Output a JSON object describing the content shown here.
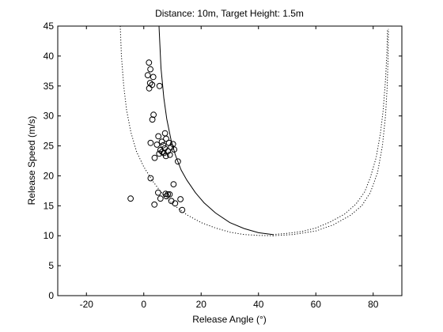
{
  "chart_data": {
    "type": "scatter",
    "title": "Distance: 10m, Target Height: 1.5m",
    "xlabel": "Release Angle (°)",
    "ylabel": "Release Speed (m/s)",
    "xlim": [
      -30,
      90
    ],
    "ylim": [
      0,
      45
    ],
    "xticks": [
      -20,
      0,
      20,
      40,
      60,
      80
    ],
    "yticks": [
      0,
      5,
      10,
      15,
      20,
      25,
      30,
      35,
      40,
      45
    ],
    "grid": false,
    "legend": "none",
    "series": [
      {
        "marker": "circle-open",
        "points": [
          [
            1.8,
            38.9
          ],
          [
            2.3,
            37.8
          ],
          [
            3.3,
            36.5
          ],
          [
            1.4,
            36.8
          ],
          [
            2.2,
            35.5
          ],
          [
            2.9,
            35.2
          ],
          [
            1.9,
            34.6
          ],
          [
            5.5,
            35.0
          ],
          [
            3.4,
            30.2
          ],
          [
            3.0,
            29.4
          ],
          [
            7.4,
            27.1
          ],
          [
            5.1,
            26.6
          ],
          [
            7.8,
            26.2
          ],
          [
            6.3,
            25.7
          ],
          [
            8.8,
            25.5
          ],
          [
            10.2,
            25.3
          ],
          [
            2.4,
            25.5
          ],
          [
            6.8,
            25.1
          ],
          [
            4.6,
            25.2
          ],
          [
            9.5,
            24.8
          ],
          [
            7.3,
            24.6
          ],
          [
            5.8,
            24.3
          ],
          [
            8.4,
            24.1
          ],
          [
            6.4,
            24.0
          ],
          [
            10.6,
            24.4
          ],
          [
            5.4,
            23.7
          ],
          [
            7.0,
            23.8
          ],
          [
            9.1,
            23.5
          ],
          [
            7.7,
            23.3
          ],
          [
            3.8,
            23.0
          ],
          [
            11.9,
            22.4
          ],
          [
            2.4,
            19.6
          ],
          [
            10.4,
            18.6
          ],
          [
            5.0,
            17.2
          ],
          [
            7.6,
            17.0
          ],
          [
            8.4,
            16.9
          ],
          [
            7.9,
            16.6
          ],
          [
            9.0,
            16.9
          ],
          [
            5.8,
            16.2
          ],
          [
            -4.6,
            16.2
          ],
          [
            12.8,
            16.1
          ],
          [
            9.6,
            15.8
          ],
          [
            10.9,
            15.4
          ],
          [
            3.7,
            15.2
          ],
          [
            13.4,
            14.3
          ]
        ]
      }
    ],
    "curves": [
      {
        "style": "solid",
        "points": [
          [
            5.3,
            45
          ],
          [
            6.0,
            38
          ],
          [
            7.0,
            33
          ],
          [
            8.0,
            29.5
          ],
          [
            9.5,
            26
          ],
          [
            11,
            23.5
          ],
          [
            13,
            21
          ],
          [
            15,
            19.3
          ],
          [
            18,
            17.2
          ],
          [
            21,
            15.5
          ],
          [
            25,
            13.8
          ],
          [
            30,
            12.2
          ],
          [
            35,
            11.2
          ],
          [
            40,
            10.5
          ],
          [
            45,
            10.2
          ]
        ]
      },
      {
        "style": "dotted",
        "points": [
          [
            45,
            10.2
          ],
          [
            50,
            10.4
          ],
          [
            55,
            10.7
          ],
          [
            60,
            11.3
          ],
          [
            65,
            12.3
          ],
          [
            70,
            13.6
          ],
          [
            74,
            15.3
          ],
          [
            77,
            17.3
          ],
          [
            79,
            19.7
          ],
          [
            81,
            23.0
          ],
          [
            82.5,
            27.0
          ],
          [
            83.5,
            31.0
          ],
          [
            84.3,
            36.0
          ],
          [
            84.8,
            40.5
          ],
          [
            85.0,
            44.5
          ]
        ]
      },
      {
        "style": "dotted",
        "points": [
          [
            -8.2,
            45
          ],
          [
            -7.8,
            40
          ],
          [
            -7.0,
            35
          ],
          [
            -6.0,
            31
          ],
          [
            -4.5,
            27.3
          ],
          [
            -2.5,
            24.0
          ],
          [
            0,
            21.5
          ],
          [
            3,
            19.2
          ],
          [
            6,
            17.3
          ],
          [
            10,
            15.3
          ],
          [
            15,
            13.5
          ],
          [
            20,
            12.2
          ],
          [
            25,
            11.3
          ],
          [
            30,
            10.6
          ],
          [
            35,
            10.2
          ],
          [
            40,
            10.05
          ],
          [
            45,
            10.0
          ]
        ]
      },
      {
        "style": "dotted",
        "points": [
          [
            45,
            10.0
          ],
          [
            52,
            10.2
          ],
          [
            60,
            10.8
          ],
          [
            66,
            11.8
          ],
          [
            72,
            13.4
          ],
          [
            76,
            15.0
          ],
          [
            79,
            17.2
          ],
          [
            81.5,
            20.5
          ],
          [
            83.2,
            25.0
          ],
          [
            84.3,
            30.0
          ],
          [
            84.9,
            35.0
          ],
          [
            85.2,
            40.0
          ],
          [
            85.3,
            44.5
          ]
        ]
      }
    ]
  }
}
